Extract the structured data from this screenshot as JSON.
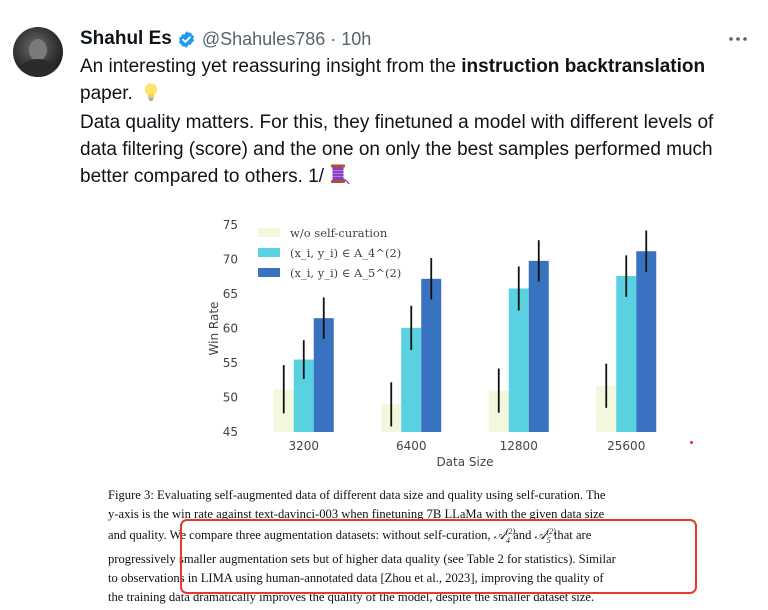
{
  "tweet": {
    "author_name": "Shahul Es",
    "handle": "@Shahules786",
    "separator": "·",
    "time": "10h",
    "text_line1_prefix": "An interesting yet reassuring insight from the ",
    "text_line1_bold": "instruction backtranslation",
    "text_line1_suffix": "paper.",
    "text_paragraph2": "Data quality matters. For this, they finetuned a model with different levels of data filtering (score) and the one on only the best samples performed much better compared to others. 1/",
    "icons": [
      "verified-badge-icon",
      "more-options-icon",
      "lightbulb-emoji-icon",
      "thread-spool-emoji-icon"
    ],
    "colors": {
      "verified": "#1d9bf0",
      "secondary_text": "#536471",
      "highlight_box": "#e8392c"
    }
  },
  "chart_data": {
    "type": "bar",
    "categories": [
      "3200",
      "6400",
      "12800",
      "25600"
    ],
    "xlabel": "Data Size",
    "ylabel": "Win Rate",
    "ylim": [
      45,
      75
    ],
    "yticks": [
      "45",
      "50",
      "55",
      "60",
      "65",
      "70",
      "75"
    ],
    "grid": false,
    "legend_position": "top-left",
    "series": [
      {
        "name": "w/o self-curation",
        "color": "#f1f8de",
        "values": [
          51.2,
          49.0,
          51.0,
          51.7
        ],
        "error": [
          3.5,
          3.2,
          3.2,
          3.2
        ]
      },
      {
        "name": "(x_i, y_i) ∈ A_4^(2)",
        "color": "#5ad1e0",
        "values": [
          55.5,
          60.1,
          65.8,
          67.6
        ],
        "error": [
          2.8,
          3.2,
          3.2,
          3.0
        ]
      },
      {
        "name": "(x_i, y_i) ∈ A_5^(2)",
        "color": "#3a72c2",
        "values": [
          61.5,
          67.2,
          69.8,
          71.2
        ],
        "error": [
          3.0,
          3.0,
          3.0,
          3.0
        ]
      }
    ]
  },
  "caption": {
    "line1": "Figure 3: Evaluating self-augmented data of different data size and quality using self-curation. The",
    "line2": "y-axis is the win rate against text-davinci-003 when finetuning 7B LLaMa with the given data size",
    "line3_a": "and quality. We compare three augmentation datasets: without self-curation, ",
    "line3_b": " and ",
    "line3_c": " that are",
    "math_a4": "A(2)4",
    "math_a5": "A(2)5",
    "line4": "progressively smaller augmentation sets but of higher data quality (see Table 2 for statistics). Similar",
    "line5": "to observations in LIMA using human-annotated data [Zhou et al., 2023], improving the quality of",
    "line6": "the training data dramatically improves the quality of the model, despite the smaller dataset size."
  }
}
